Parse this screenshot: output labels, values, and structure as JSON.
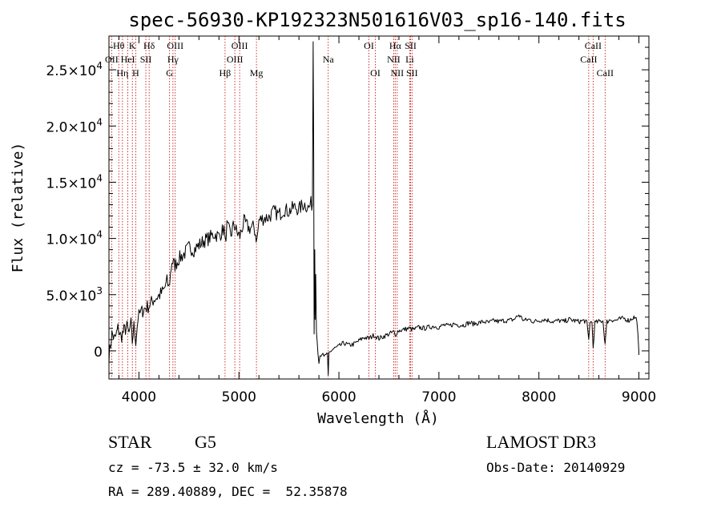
{
  "chart_data": {
    "type": "line",
    "title": "spec-56930-KP192323N501616V03_sp16-140.fits",
    "xlabel": "Wavelength (Å)",
    "ylabel": "Flux (relative)",
    "xlim": [
      3700,
      9100
    ],
    "ylim": [
      -2500,
      28000
    ],
    "x_ticks": [
      4000,
      5000,
      6000,
      7000,
      8000,
      9000
    ],
    "x_tick_labels": [
      "4000",
      "5000",
      "6000",
      "7000",
      "8000",
      "9000"
    ],
    "y_ticks": [
      0,
      5000,
      10000,
      15000,
      20000,
      25000
    ],
    "y_tick_labels": [
      {
        "mant": "0",
        "exp": ""
      },
      {
        "mant": "5.0×10",
        "exp": "3"
      },
      {
        "mant": "1.0×10",
        "exp": "4"
      },
      {
        "mant": "1.5×10",
        "exp": "4"
      },
      {
        "mant": "2.0×10",
        "exp": "4"
      },
      {
        "mant": "2.5×10",
        "exp": "4"
      }
    ],
    "series": [
      {
        "name": "spectrum",
        "x": [
          3700,
          3730,
          3760,
          3790,
          3820,
          3850,
          3880,
          3900,
          3920,
          3933,
          3950,
          3968,
          3990,
          4010,
          4030,
          4060,
          4100,
          4150,
          4200,
          4250,
          4280,
          4300,
          4330,
          4360,
          4400,
          4450,
          4500,
          4550,
          4600,
          4650,
          4700,
          4750,
          4800,
          4850,
          4861,
          4880,
          4920,
          4950,
          4980,
          5010,
          5050,
          5100,
          5150,
          5180,
          5200,
          5250,
          5300,
          5350,
          5400,
          5450,
          5500,
          5550,
          5600,
          5650,
          5700,
          5720,
          5735,
          5742,
          5748,
          5752,
          5758,
          5762,
          5768,
          5775,
          5790,
          5800,
          5810,
          5830,
          5850,
          5870,
          5885,
          5893,
          5900,
          5920,
          5950,
          6000,
          6050,
          6100,
          6150,
          6200,
          6250,
          6300,
          6350,
          6400,
          6450,
          6500,
          6550,
          6563,
          6580,
          6600,
          6650,
          6700,
          6750,
          6800,
          6850,
          6900,
          6950,
          7000,
          7050,
          7100,
          7150,
          7200,
          7250,
          7300,
          7350,
          7400,
          7450,
          7500,
          7550,
          7600,
          7650,
          7700,
          7750,
          7800,
          7850,
          7900,
          7950,
          8000,
          8050,
          8100,
          8150,
          8200,
          8250,
          8300,
          8350,
          8400,
          8450,
          8480,
          8498,
          8510,
          8530,
          8542,
          8560,
          8600,
          8640,
          8662,
          8680,
          8720,
          8760,
          8800,
          8850,
          8900,
          8950,
          8980,
          9000
        ],
        "y": [
          -500,
          1500,
          1000,
          2000,
          1200,
          1800,
          2100,
          1500,
          2400,
          800,
          2200,
          900,
          2900,
          3300,
          3500,
          3800,
          4000,
          4600,
          4900,
          5400,
          6200,
          5600,
          8000,
          7600,
          8200,
          8600,
          9200,
          9000,
          9400,
          9800,
          10000,
          10400,
          10200,
          10900,
          9600,
          11100,
          10300,
          11300,
          10500,
          10200,
          11500,
          10900,
          11000,
          9800,
          11600,
          11800,
          11900,
          12400,
          12100,
          12600,
          12400,
          12800,
          12600,
          13100,
          12700,
          13100,
          13000,
          27500,
          17000,
          1500,
          9000,
          2800,
          6800,
          1800,
          400,
          -900,
          -400,
          -200,
          -600,
          -300,
          -400,
          -2300,
          -200,
          0,
          200,
          400,
          700,
          500,
          600,
          900,
          1200,
          1100,
          1400,
          1100,
          1300,
          1500,
          1700,
          1300,
          1700,
          1800,
          1900,
          2000,
          1900,
          2100,
          2000,
          2100,
          2200,
          2100,
          2300,
          2200,
          2400,
          2300,
          2300,
          2500,
          2400,
          2500,
          2600,
          2500,
          2700,
          2600,
          2700,
          2700,
          2800,
          3200,
          2700,
          2800,
          2600,
          2700,
          2800,
          2700,
          2600,
          2700,
          2600,
          2800,
          2700,
          2600,
          2700,
          2500,
          1000,
          2600,
          2500,
          300,
          2500,
          2600,
          2700,
          600,
          2600,
          2800,
          2700,
          2800,
          2900,
          2700,
          3000,
          2800,
          -100
        ]
      }
    ],
    "spectral_lines": [
      {
        "label": "Hθ",
        "wl": 3798,
        "row": 0
      },
      {
        "label": "OII",
        "wl": 3727,
        "row": 1
      },
      {
        "label": "K",
        "wl": 3934,
        "row": 0
      },
      {
        "label": "HeI",
        "wl": 3889,
        "row": 1
      },
      {
        "label": "Hη",
        "wl": 3835,
        "row": 2
      },
      {
        "label": "H",
        "wl": 3968,
        "row": 2
      },
      {
        "label": "Hδ",
        "wl": 4102,
        "row": 0
      },
      {
        "label": "SII",
        "wl": 4069,
        "row": 1
      },
      {
        "label": "OIII",
        "wl": 4363,
        "row": 0
      },
      {
        "label": "Hγ",
        "wl": 4340,
        "row": 1
      },
      {
        "label": "G",
        "wl": 4306,
        "row": 2
      },
      {
        "label": "OIII",
        "wl": 5007,
        "row": 0
      },
      {
        "label": "OIII",
        "wl": 4959,
        "row": 1
      },
      {
        "label": "Hβ",
        "wl": 4861,
        "row": 2
      },
      {
        "label": "Mg",
        "wl": 5175,
        "row": 2
      },
      {
        "label": "Na",
        "wl": 5893,
        "row": 1
      },
      {
        "label": "OI",
        "wl": 6300,
        "row": 0
      },
      {
        "label": "OI",
        "wl": 6364,
        "row": 2
      },
      {
        "label": "Hα",
        "wl": 6563,
        "row": 0
      },
      {
        "label": "SII",
        "wl": 6717,
        "row": 0
      },
      {
        "label": "NII",
        "wl": 6548,
        "row": 1
      },
      {
        "label": "Li",
        "wl": 6708,
        "row": 1
      },
      {
        "label": "NII",
        "wl": 6583,
        "row": 2
      },
      {
        "label": "SII",
        "wl": 6731,
        "row": 2
      },
      {
        "label": "CaII",
        "wl": 8542,
        "row": 0
      },
      {
        "label": "CaII",
        "wl": 8498,
        "row": 1
      },
      {
        "label": "CaII",
        "wl": 8662,
        "row": 2
      }
    ]
  },
  "info": {
    "class_label": "STAR",
    "subclass": "G5",
    "survey": "LAMOST DR3",
    "redshift_text": "cz = -73.5 ± 32.0 km/s",
    "obs_date_text": "Obs-Date: 20140929",
    "coords_text": "RA = 289.40889, DEC =  52.35878"
  }
}
